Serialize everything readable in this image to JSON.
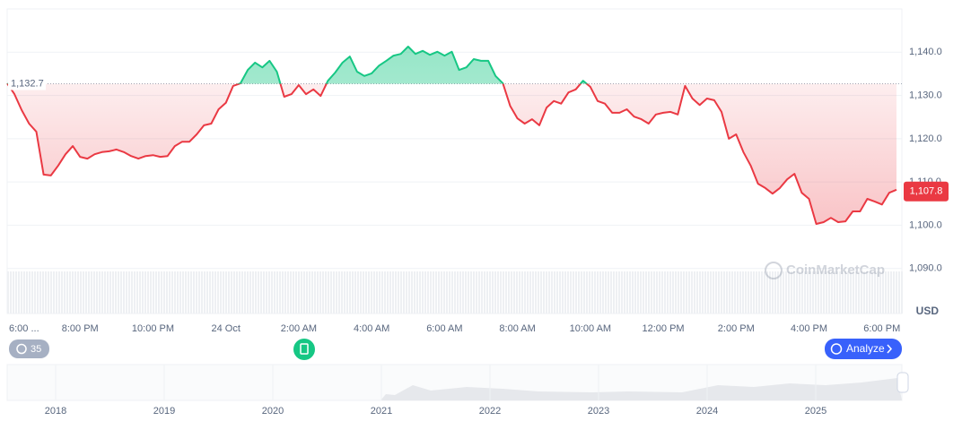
{
  "chart_data": {
    "type": "line",
    "categories": [
      "6:00 ...",
      null,
      null,
      null,
      null,
      null,
      null,
      null,
      null,
      null,
      "8:00 PM",
      null,
      null,
      null,
      null,
      null,
      null,
      null,
      null,
      null,
      "10:00 PM",
      null,
      null,
      null,
      null,
      null,
      null,
      null,
      null,
      null,
      "24 Oct",
      null,
      null,
      null,
      null,
      null,
      null,
      null,
      null,
      null,
      "2:00 AM",
      null,
      null,
      null,
      null,
      null,
      null,
      null,
      null,
      null,
      "4:00 AM",
      null,
      null,
      null,
      null,
      null,
      null,
      null,
      null,
      null,
      "6:00 AM",
      null,
      null,
      null,
      null,
      null,
      null,
      null,
      null,
      null,
      "8:00 AM",
      null,
      null,
      null,
      null,
      null,
      null,
      null,
      null,
      null,
      "10:00 AM",
      null,
      null,
      null,
      null,
      null,
      null,
      null,
      null,
      null,
      "12:00 PM",
      null,
      null,
      null,
      null,
      null,
      null,
      null,
      null,
      null,
      "2:00 PM",
      null,
      null,
      null,
      null,
      null,
      null,
      null,
      null,
      null,
      "4:00 PM",
      null,
      null,
      null,
      null,
      null,
      null,
      null,
      null,
      null,
      "6:00 PM",
      null,
      null
    ],
    "values": [
      1132.8,
      1130.3,
      1126.6,
      1123.5,
      1121.6,
      1111.7,
      1111.5,
      1113.8,
      1116.4,
      1118.3,
      1115.8,
      1115.4,
      1116.4,
      1116.9,
      1117.1,
      1117.5,
      1116.9,
      1116.0,
      1115.4,
      1116.0,
      1116.2,
      1115.8,
      1116.0,
      1118.3,
      1119.3,
      1119.3,
      1121.0,
      1123.1,
      1123.5,
      1126.8,
      1128.3,
      1132.2,
      1132.8,
      1135.9,
      1137.6,
      1136.5,
      1138.0,
      1135.5,
      1129.7,
      1130.3,
      1132.4,
      1130.3,
      1131.4,
      1129.9,
      1133.4,
      1135.3,
      1137.6,
      1139.0,
      1135.5,
      1134.5,
      1135.1,
      1136.9,
      1138.0,
      1139.2,
      1139.6,
      1141.3,
      1139.6,
      1140.3,
      1139.4,
      1140.1,
      1139.2,
      1140.1,
      1135.9,
      1136.5,
      1138.4,
      1138.0,
      1138.0,
      1134.5,
      1132.8,
      1127.6,
      1124.7,
      1123.5,
      1124.5,
      1123.1,
      1127.2,
      1128.7,
      1128.1,
      1130.7,
      1131.4,
      1133.4,
      1132.0,
      1128.7,
      1128.1,
      1126.0,
      1126.0,
      1126.8,
      1125.1,
      1124.5,
      1123.5,
      1125.6,
      1126.0,
      1126.2,
      1125.6,
      1132.2,
      1129.3,
      1127.8,
      1129.3,
      1128.9,
      1126.2,
      1120.0,
      1121.0,
      1116.9,
      1113.8,
      1109.6,
      1108.6,
      1107.3,
      1108.6,
      1110.6,
      1111.9,
      1107.5,
      1106.1,
      1100.3,
      1100.7,
      1101.7,
      1100.7,
      1100.9,
      1103.2,
      1103.2,
      1106.1,
      1105.5,
      1104.8,
      1107.5,
      1108.2
    ],
    "ylim": [
      1080,
      1150
    ],
    "yticks": [
      {
        "value": 1090,
        "label": "1,090.0"
      },
      {
        "value": 1100,
        "label": "1,100.0"
      },
      {
        "value": 1110,
        "label": "1,110.0"
      },
      {
        "value": 1120,
        "label": "1,120.0"
      },
      {
        "value": 1130,
        "label": "1,130.0"
      },
      {
        "value": 1140,
        "label": "1,140.0"
      }
    ],
    "grid": true,
    "reference": {
      "value": 1132.7,
      "label": "1,132.7"
    },
    "last_price": {
      "value": 1107.8,
      "label": "1,107.8"
    },
    "up_color": "#16c784",
    "down_color": "#ea3943",
    "currency": "USD"
  },
  "watermark": "CoinMarketCap",
  "controls": {
    "history_count": "35",
    "analyze": "Analyze"
  },
  "navigator": {
    "years": [
      "2018",
      "2019",
      "2020",
      "2021",
      "2022",
      "2023",
      "2024",
      "2025"
    ]
  }
}
